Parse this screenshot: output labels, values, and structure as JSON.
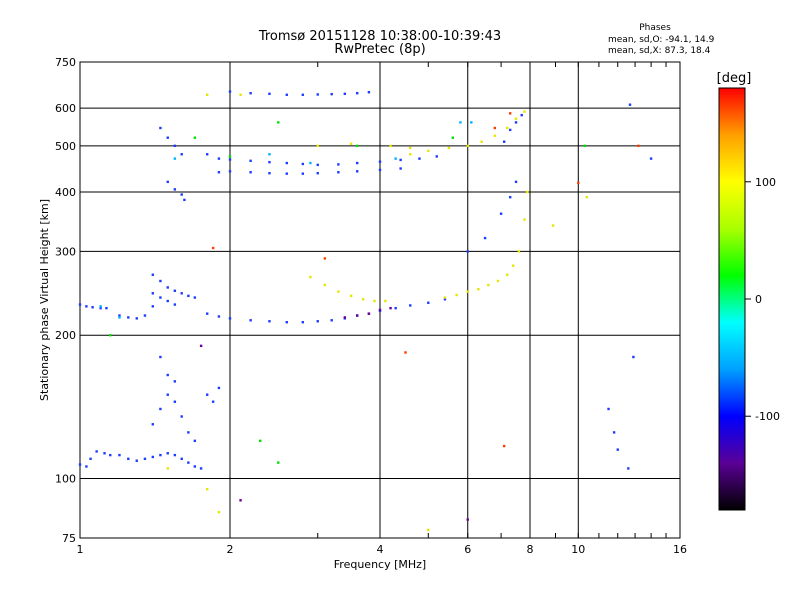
{
  "chart_data": {
    "type": "scatter",
    "title": "Tromsø 20151128 10:38:00-10:39:43",
    "subtitle": "RwPretec (8p)",
    "xlabel": "Frequency [MHz]",
    "ylabel": "Stationary phase Virtual Height [km]",
    "x_scale": "log",
    "y_scale": "log",
    "xlim": [
      1,
      16
    ],
    "ylim": [
      75,
      750
    ],
    "x_ticks": [
      1,
      2,
      4,
      6,
      8,
      10,
      16
    ],
    "y_ticks": [
      75,
      100,
      200,
      300,
      400,
      500,
      600,
      750
    ],
    "grid": true,
    "legend": {
      "title": "Phases",
      "lines": [
        "mean, sd,O: -94.1, 14.9",
        "mean, sd,X:  87.3, 18.4"
      ],
      "placement": "top-right"
    },
    "colorbar": {
      "label": "[deg]",
      "range": [
        -180,
        180
      ],
      "ticks": [
        100,
        0,
        -100
      ],
      "colors": [
        "#000000",
        "#5a0096",
        "#0000ff",
        "#00a0ff",
        "#00ffff",
        "#00ff00",
        "#aaff00",
        "#ffff00",
        "#ffa000",
        "#ff0000"
      ]
    },
    "series": [
      {
        "color": "#1e3cff",
        "points": [
          [
            1.0,
            107
          ],
          [
            1.03,
            106
          ],
          [
            1.05,
            110
          ],
          [
            1.08,
            114
          ],
          [
            1.12,
            113
          ],
          [
            1.15,
            112
          ],
          [
            1.2,
            112
          ],
          [
            1.25,
            110
          ],
          [
            1.3,
            109
          ],
          [
            1.35,
            110
          ],
          [
            1.4,
            111
          ],
          [
            1.45,
            112
          ],
          [
            1.5,
            113
          ],
          [
            1.55,
            112
          ],
          [
            1.6,
            110
          ],
          [
            1.65,
            108
          ],
          [
            1.7,
            106
          ],
          [
            1.75,
            105
          ],
          [
            1.0,
            232
          ],
          [
            1.03,
            230
          ],
          [
            1.06,
            229
          ],
          [
            1.1,
            228
          ],
          [
            1.13,
            228
          ],
          [
            1.2,
            220
          ],
          [
            1.25,
            218
          ],
          [
            1.3,
            217
          ],
          [
            1.35,
            220
          ],
          [
            1.4,
            230
          ],
          [
            1.8,
            222
          ],
          [
            1.9,
            219
          ],
          [
            2.0,
            217
          ],
          [
            2.2,
            215
          ],
          [
            2.4,
            214
          ],
          [
            2.6,
            213
          ],
          [
            2.8,
            213
          ],
          [
            3.0,
            214
          ],
          [
            3.2,
            215
          ],
          [
            3.4,
            217
          ],
          [
            3.6,
            220
          ],
          [
            3.8,
            222
          ],
          [
            4.0,
            225
          ],
          [
            4.3,
            228
          ],
          [
            4.6,
            231
          ],
          [
            5.0,
            234
          ],
          [
            5.4,
            238
          ],
          [
            1.4,
            268
          ],
          [
            1.45,
            260
          ],
          [
            1.5,
            252
          ],
          [
            1.55,
            248
          ],
          [
            1.6,
            245
          ],
          [
            1.65,
            242
          ],
          [
            1.7,
            240
          ],
          [
            1.4,
            245
          ],
          [
            1.45,
            240
          ],
          [
            1.5,
            236
          ],
          [
            1.55,
            232
          ],
          [
            1.8,
            480
          ],
          [
            1.9,
            470
          ],
          [
            2.0,
            468
          ],
          [
            2.2,
            465
          ],
          [
            2.4,
            462
          ],
          [
            2.6,
            460
          ],
          [
            2.8,
            458
          ],
          [
            3.0,
            456
          ],
          [
            3.3,
            457
          ],
          [
            3.6,
            460
          ],
          [
            4.0,
            463
          ],
          [
            4.4,
            467
          ],
          [
            4.8,
            470
          ],
          [
            5.2,
            475
          ],
          [
            1.9,
            440
          ],
          [
            2.0,
            442
          ],
          [
            2.2,
            440
          ],
          [
            2.4,
            438
          ],
          [
            2.6,
            437
          ],
          [
            2.8,
            437
          ],
          [
            3.0,
            438
          ],
          [
            3.3,
            440
          ],
          [
            3.6,
            442
          ],
          [
            4.0,
            445
          ],
          [
            4.4,
            448
          ],
          [
            2.0,
            650
          ],
          [
            2.2,
            645
          ],
          [
            2.4,
            643
          ],
          [
            2.6,
            640
          ],
          [
            2.8,
            640
          ],
          [
            3.0,
            641
          ],
          [
            3.2,
            642
          ],
          [
            3.4,
            643
          ],
          [
            3.6,
            645
          ],
          [
            3.8,
            648
          ],
          [
            1.45,
            545
          ],
          [
            1.5,
            520
          ],
          [
            1.55,
            500
          ],
          [
            1.6,
            480
          ],
          [
            1.5,
            420
          ],
          [
            1.55,
            405
          ],
          [
            1.6,
            395
          ],
          [
            1.62,
            385
          ],
          [
            1.4,
            130
          ],
          [
            1.45,
            140
          ],
          [
            1.5,
            150
          ],
          [
            1.55,
            145
          ],
          [
            1.6,
            135
          ],
          [
            1.45,
            180
          ],
          [
            1.5,
            165
          ],
          [
            1.55,
            160
          ],
          [
            1.65,
            125
          ],
          [
            1.7,
            120
          ],
          [
            1.8,
            150
          ],
          [
            1.85,
            145
          ],
          [
            1.9,
            155
          ],
          [
            6.0,
            300
          ],
          [
            6.5,
            320
          ],
          [
            7.0,
            360
          ],
          [
            7.3,
            390
          ],
          [
            7.5,
            420
          ],
          [
            7.1,
            510
          ],
          [
            7.3,
            540
          ],
          [
            7.5,
            560
          ],
          [
            7.7,
            580
          ],
          [
            11.5,
            140
          ],
          [
            11.8,
            125
          ],
          [
            12.0,
            115
          ],
          [
            12.6,
            105
          ],
          [
            12.9,
            180
          ],
          [
            12.7,
            610
          ],
          [
            14.0,
            470
          ]
        ]
      },
      {
        "color": "#e6e600",
        "points": [
          [
            2.9,
            265
          ],
          [
            3.1,
            255
          ],
          [
            3.3,
            247
          ],
          [
            3.5,
            242
          ],
          [
            3.7,
            238
          ],
          [
            3.9,
            236
          ],
          [
            4.1,
            236
          ],
          [
            5.4,
            240
          ],
          [
            5.7,
            243
          ],
          [
            6.0,
            247
          ],
          [
            6.3,
            250
          ],
          [
            6.6,
            255
          ],
          [
            6.9,
            260
          ],
          [
            7.2,
            268
          ],
          [
            7.4,
            280
          ],
          [
            7.6,
            300
          ],
          [
            7.8,
            350
          ],
          [
            7.9,
            400
          ],
          [
            4.6,
            480
          ],
          [
            5.0,
            488
          ],
          [
            5.5,
            495
          ],
          [
            6.0,
            500
          ],
          [
            6.4,
            510
          ],
          [
            6.8,
            525
          ],
          [
            7.2,
            545
          ],
          [
            7.5,
            570
          ],
          [
            7.8,
            590
          ],
          [
            4.2,
            500
          ],
          [
            4.6,
            495
          ],
          [
            3.5,
            505
          ],
          [
            1.8,
            640
          ],
          [
            2.1,
            640
          ],
          [
            3.0,
            500
          ],
          [
            1.5,
            105
          ],
          [
            1.8,
            95
          ],
          [
            1.9,
            85
          ],
          [
            5.0,
            78
          ],
          [
            8.9,
            340
          ],
          [
            10.4,
            390
          ]
        ]
      },
      {
        "color": "#00e000",
        "points": [
          [
            1.7,
            520
          ],
          [
            2.5,
            560
          ],
          [
            3.6,
            500
          ],
          [
            5.6,
            520
          ],
          [
            2.0,
            475
          ],
          [
            1.15,
            200
          ],
          [
            10.3,
            500
          ],
          [
            2.5,
            108
          ],
          [
            2.3,
            120
          ]
        ]
      },
      {
        "color": "#ff3c00",
        "points": [
          [
            1.85,
            305
          ],
          [
            3.1,
            290
          ],
          [
            4.5,
            184
          ],
          [
            6.8,
            545
          ],
          [
            7.3,
            585
          ],
          [
            7.1,
            117
          ],
          [
            10.0,
            418
          ],
          [
            13.2,
            500
          ]
        ]
      },
      {
        "color": "#6a0096",
        "points": [
          [
            3.4,
            218
          ],
          [
            3.6,
            220
          ],
          [
            3.8,
            222
          ],
          [
            4.0,
            226
          ],
          [
            4.2,
            228
          ],
          [
            1.75,
            190
          ],
          [
            2.1,
            90
          ],
          [
            6.0,
            82
          ]
        ]
      },
      {
        "color": "#00b4ff",
        "points": [
          [
            1.55,
            470
          ],
          [
            2.4,
            480
          ],
          [
            4.3,
            470
          ],
          [
            5.8,
            560
          ],
          [
            6.1,
            560
          ],
          [
            2.9,
            460
          ],
          [
            1.2,
            218
          ],
          [
            1.1,
            230
          ]
        ]
      }
    ]
  }
}
